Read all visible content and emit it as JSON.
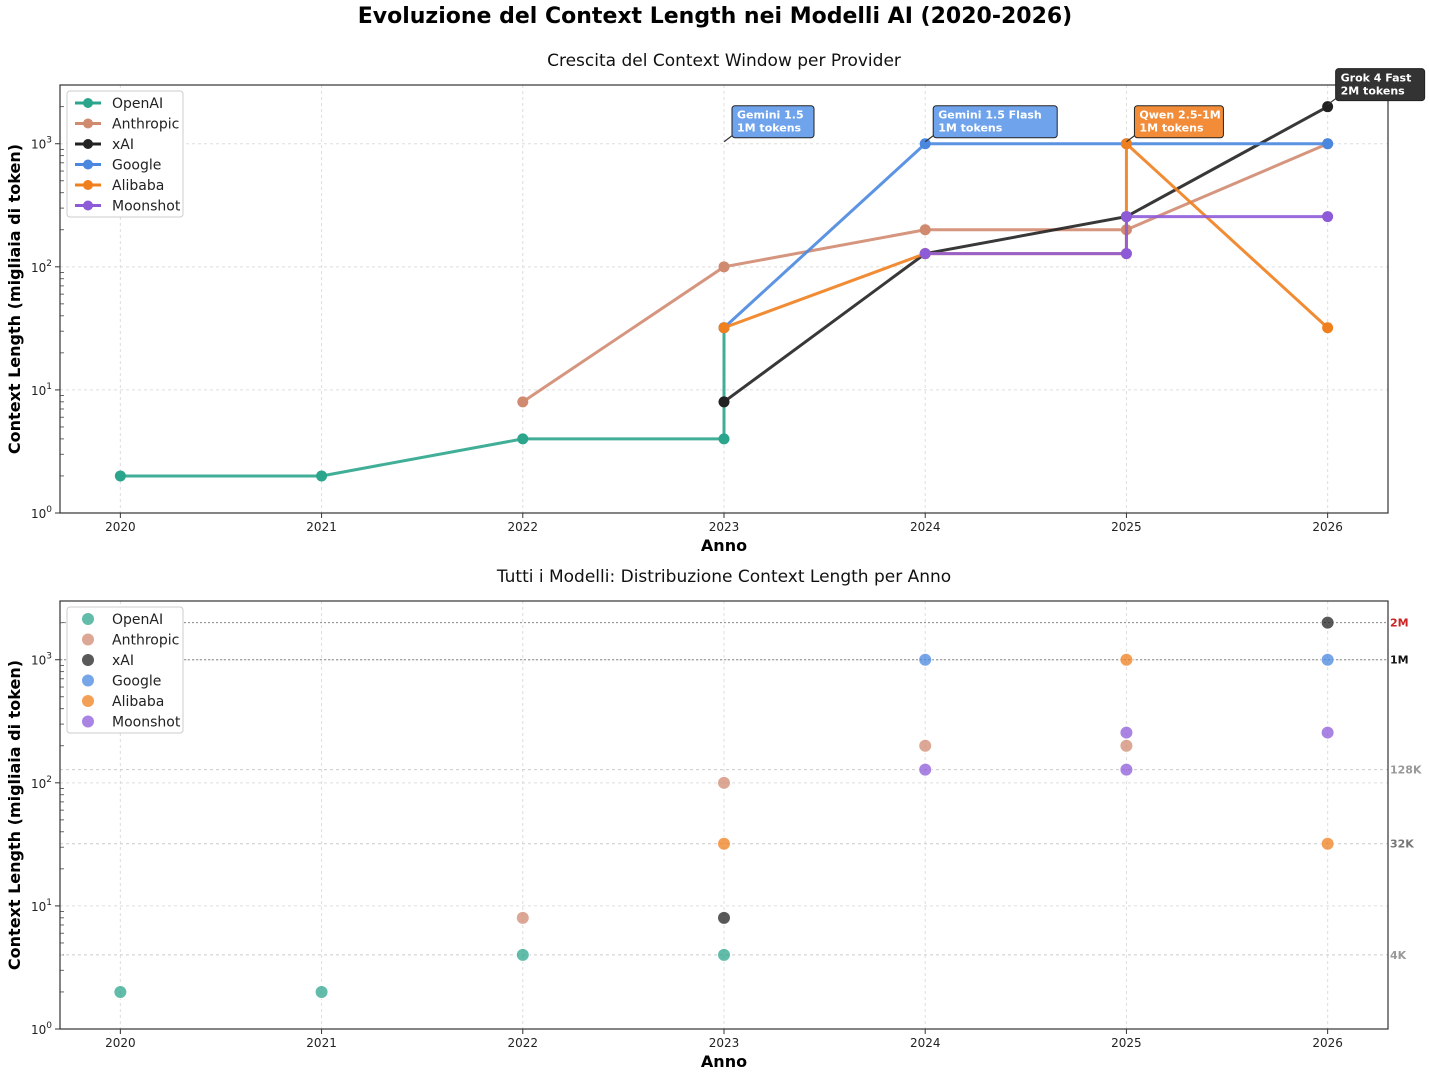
{
  "title": "Evoluzione del Context Length nei Modelli AI (2020-2026)",
  "chart_data": [
    {
      "type": "line",
      "title": "Crescita del Context Window per Provider",
      "xlabel": "Anno",
      "ylabel": "Context Length (migliaia di token)",
      "yscale": "log",
      "ylim": [
        1,
        3000
      ],
      "xlim": [
        2019.7,
        2026.3
      ],
      "x_ticks": [
        "2020",
        "2021",
        "2022",
        "2023",
        "2024",
        "2025",
        "2026"
      ],
      "y_ticks": [
        {
          "exp": "0"
        },
        {
          "exp": "1"
        },
        {
          "exp": "2"
        },
        {
          "exp": "3"
        }
      ],
      "grid": true,
      "legend_position": "top-left",
      "series": [
        {
          "name": "OpenAI",
          "color": "#2ca58d",
          "points": [
            [
              2020,
              2
            ],
            [
              2021,
              2
            ],
            [
              2022,
              4
            ],
            [
              2023,
              4
            ],
            [
              2023,
              32
            ]
          ]
        },
        {
          "name": "Anthropic",
          "color": "#d08a70",
          "points": [
            [
              2022,
              8
            ],
            [
              2023,
              100
            ],
            [
              2024,
              200
            ],
            [
              2025,
              200
            ],
            [
              2026,
              1000
            ]
          ]
        },
        {
          "name": "xAI",
          "color": "#222222",
          "points": [
            [
              2023,
              8
            ],
            [
              2024,
              128
            ],
            [
              2025,
              256
            ],
            [
              2026,
              2000
            ]
          ]
        },
        {
          "name": "Google",
          "color": "#4a88e0",
          "points": [
            [
              2023,
              32
            ],
            [
              2024,
              1000
            ],
            [
              2025,
              1000
            ],
            [
              2026,
              1000
            ]
          ]
        },
        {
          "name": "Alibaba",
          "color": "#f07f1e",
          "points": [
            [
              2023,
              32
            ],
            [
              2024,
              128
            ],
            [
              2025,
              128
            ],
            [
              2025,
              1000
            ],
            [
              2026,
              32
            ]
          ]
        },
        {
          "name": "Moonshot",
          "color": "#8e5bd8",
          "points": [
            [
              2024,
              128
            ],
            [
              2025,
              128
            ],
            [
              2025,
              256
            ],
            [
              2026,
              256
            ]
          ]
        }
      ],
      "annotations": [
        {
          "lines": [
            "Gemini 1.5",
            "1M tokens"
          ],
          "x": 2023,
          "y": 1000,
          "color": "#6fa4ec"
        },
        {
          "lines": [
            "Gemini 1.5 Flash",
            "1M tokens"
          ],
          "x": 2024,
          "y": 1000,
          "color": "#6fa4ec"
        },
        {
          "lines": [
            "Qwen 2.5-1M",
            "1M tokens"
          ],
          "x": 2025,
          "y": 1000,
          "color": "#f28c38"
        },
        {
          "lines": [
            "Grok 4 Fast",
            "2M tokens"
          ],
          "x": 2026,
          "y": 2000,
          "color": "#333333"
        }
      ]
    },
    {
      "type": "scatter",
      "title": "Tutti i Modelli: Distribuzione Context Length per Anno",
      "xlabel": "Anno",
      "ylabel": "Context Length (migliaia di token)",
      "yscale": "log",
      "ylim": [
        1,
        3000
      ],
      "xlim": [
        2019.7,
        2026.3
      ],
      "x_ticks": [
        "2020",
        "2021",
        "2022",
        "2023",
        "2024",
        "2025",
        "2026"
      ],
      "y_ticks": [
        {
          "exp": "0"
        },
        {
          "exp": "1"
        },
        {
          "exp": "2"
        },
        {
          "exp": "3"
        }
      ],
      "grid": true,
      "legend_position": "top-left",
      "series": [
        {
          "name": "OpenAI",
          "color": "#2ca58d",
          "points": [
            [
              2020,
              2
            ],
            [
              2021,
              2
            ],
            [
              2022,
              4
            ],
            [
              2023,
              4
            ]
          ]
        },
        {
          "name": "Anthropic",
          "color": "#d08a70",
          "points": [
            [
              2022,
              8
            ],
            [
              2023,
              100
            ],
            [
              2024,
              200
            ],
            [
              2025,
              200
            ]
          ]
        },
        {
          "name": "xAI",
          "color": "#222222",
          "points": [
            [
              2023,
              8
            ],
            [
              2026,
              2000
            ]
          ]
        },
        {
          "name": "Google",
          "color": "#4a88e0",
          "points": [
            [
              2024,
              1000
            ],
            [
              2026,
              1000
            ]
          ]
        },
        {
          "name": "Alibaba",
          "color": "#f07f1e",
          "points": [
            [
              2023,
              32
            ],
            [
              2025,
              1000
            ],
            [
              2026,
              32
            ]
          ]
        },
        {
          "name": "Moonshot",
          "color": "#8e5bd8",
          "points": [
            [
              2024,
              128
            ],
            [
              2025,
              128
            ],
            [
              2025,
              256
            ],
            [
              2026,
              256
            ]
          ]
        }
      ],
      "reference_lines": [
        {
          "label": "2M",
          "y": 2000,
          "color": "#cc2222",
          "dotted": true
        },
        {
          "label": "1M",
          "y": 1000,
          "color": "#111111",
          "dotted": true
        },
        {
          "label": "128K",
          "y": 128,
          "color": "#999999",
          "dotted": false
        },
        {
          "label": "32K",
          "y": 32,
          "color": "#777777",
          "dotted": false
        },
        {
          "label": "4K",
          "y": 4,
          "color": "#999999",
          "dotted": false
        }
      ]
    }
  ]
}
